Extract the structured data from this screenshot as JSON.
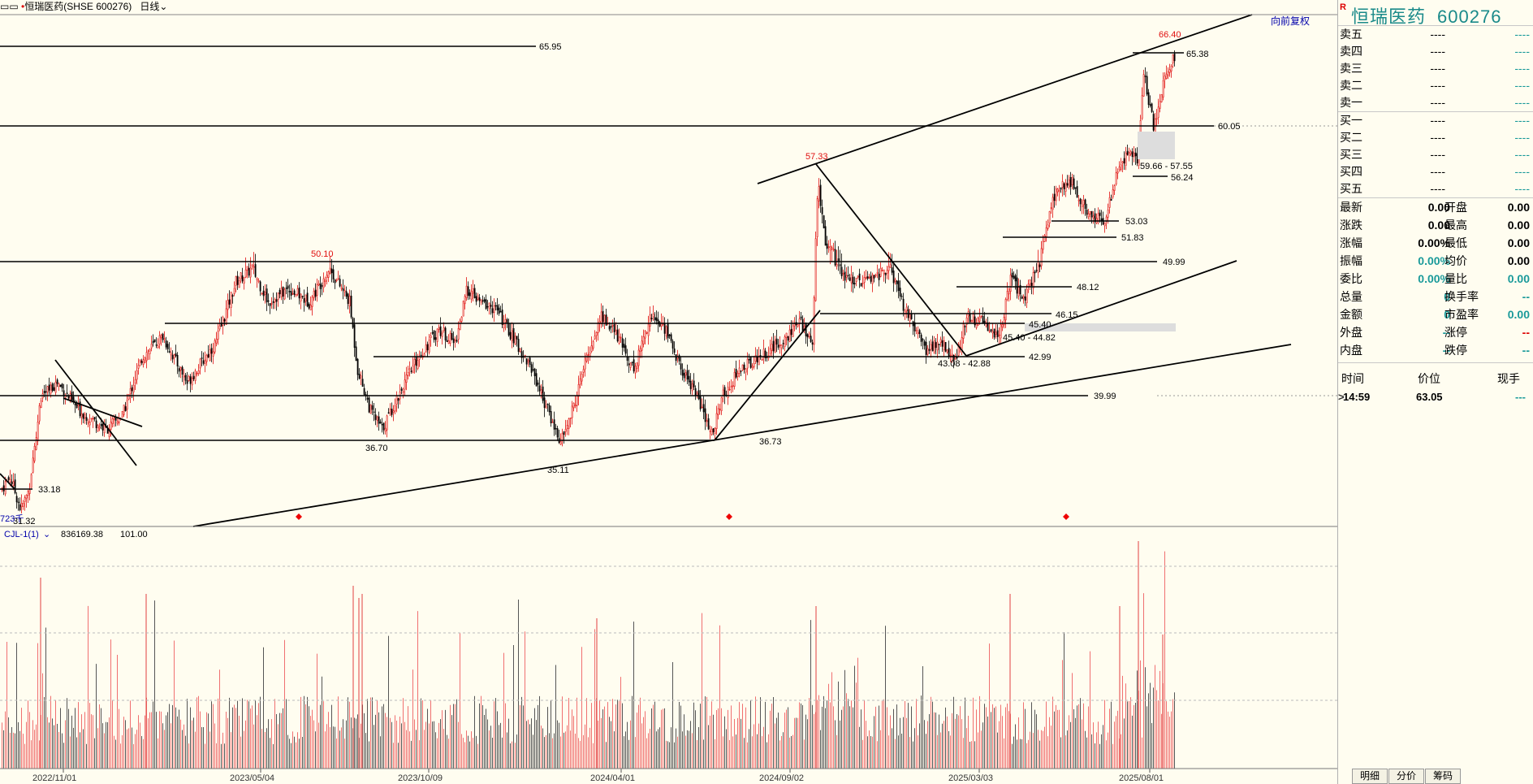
{
  "titlebar": {
    "menu_glyph": "▭▭",
    "stock": "恒瑞医药(SHSE 600276)",
    "period": "日线"
  },
  "adjust_label": "向前复权",
  "chart_data": {
    "type": "candlestick",
    "x_ticks": [
      "2022/11/01",
      "2023/05/04",
      "2023/10/09",
      "2024/04/01",
      "2024/09/02",
      "2025/03/03",
      "2025/08/01"
    ],
    "price_labels": {
      "high_marker": "66.40",
      "low_marker_a": "57.33",
      "low_marker_b": "50.10",
      "l6595": "65.95",
      "l6538": "65.38",
      "l6005": "60.05",
      "zone_5966": "59.66 - 57.55",
      "l5624": "56.24",
      "l5303": "53.03",
      "l5183": "51.83",
      "l4999": "49.99",
      "l4812": "48.12",
      "l4615": "46.15",
      "l4540": "45.40",
      "zone_4540": "45.40 - 44.82",
      "zone_4308": "43.08 - 42.88",
      "l4299": "42.99",
      "l3999": "39.99",
      "l3670": "36.70",
      "l3673": "36.73",
      "l3511": "35.11",
      "l3318": "33.18",
      "l3132": "31.32",
      "vol_left": "723千"
    },
    "volume_indicator": {
      "name": "CJL-1(1)",
      "value": "836169.38",
      "extra": "101.00"
    }
  },
  "quote_panel": {
    "flag": "R",
    "name": "恒瑞医药",
    "code": "600276",
    "asks": [
      {
        "label": "卖五",
        "price": "----",
        "vol": "----"
      },
      {
        "label": "卖四",
        "price": "----",
        "vol": "----"
      },
      {
        "label": "卖三",
        "price": "----",
        "vol": "----"
      },
      {
        "label": "卖二",
        "price": "----",
        "vol": "----"
      },
      {
        "label": "卖一",
        "price": "----",
        "vol": "----"
      }
    ],
    "bids": [
      {
        "label": "买一",
        "price": "----",
        "vol": "----"
      },
      {
        "label": "买二",
        "price": "----",
        "vol": "----"
      },
      {
        "label": "买三",
        "price": "----",
        "vol": "----"
      },
      {
        "label": "买四",
        "price": "----",
        "vol": "----"
      },
      {
        "label": "买五",
        "price": "----",
        "vol": "----"
      }
    ],
    "stats": [
      {
        "l1": "最新",
        "v1": "0.00",
        "l2": "开盘",
        "v2": "0.00"
      },
      {
        "l1": "涨跌",
        "v1": "0.00",
        "l2": "最高",
        "v2": "0.00"
      },
      {
        "l1": "涨幅",
        "v1": "0.00%",
        "l2": "最低",
        "v2": "0.00"
      },
      {
        "l1": "振幅",
        "v1": "0.00%",
        "l2": "均价",
        "v2": "0.00"
      },
      {
        "l1": "委比",
        "v1": "0.00%",
        "l2": "量比",
        "v2": "0.00"
      },
      {
        "l1": "总量",
        "v1": "0",
        "l2": "换手率",
        "v2": "--"
      },
      {
        "l1": "金额",
        "v1": "0",
        "l2": "市盈率",
        "v2": "0.00"
      },
      {
        "l1": "外盘",
        "v1": "--",
        "l2": "涨停",
        "v2": "--"
      },
      {
        "l1": "内盘",
        "v1": "--",
        "l2": "跌停",
        "v2": "--"
      }
    ],
    "tick_header": {
      "time": "时间",
      "price": "价位",
      "vol": "现手"
    },
    "ticks": [
      {
        "time": "14:59",
        "price": "63.05",
        "vol": "---"
      }
    ]
  },
  "tabs": [
    "明细",
    "分价",
    "筹码"
  ],
  "colors": {
    "up": "#e01010",
    "down": "#000000",
    "teal": "#1a9a9a",
    "bg": "#fffdf0"
  }
}
